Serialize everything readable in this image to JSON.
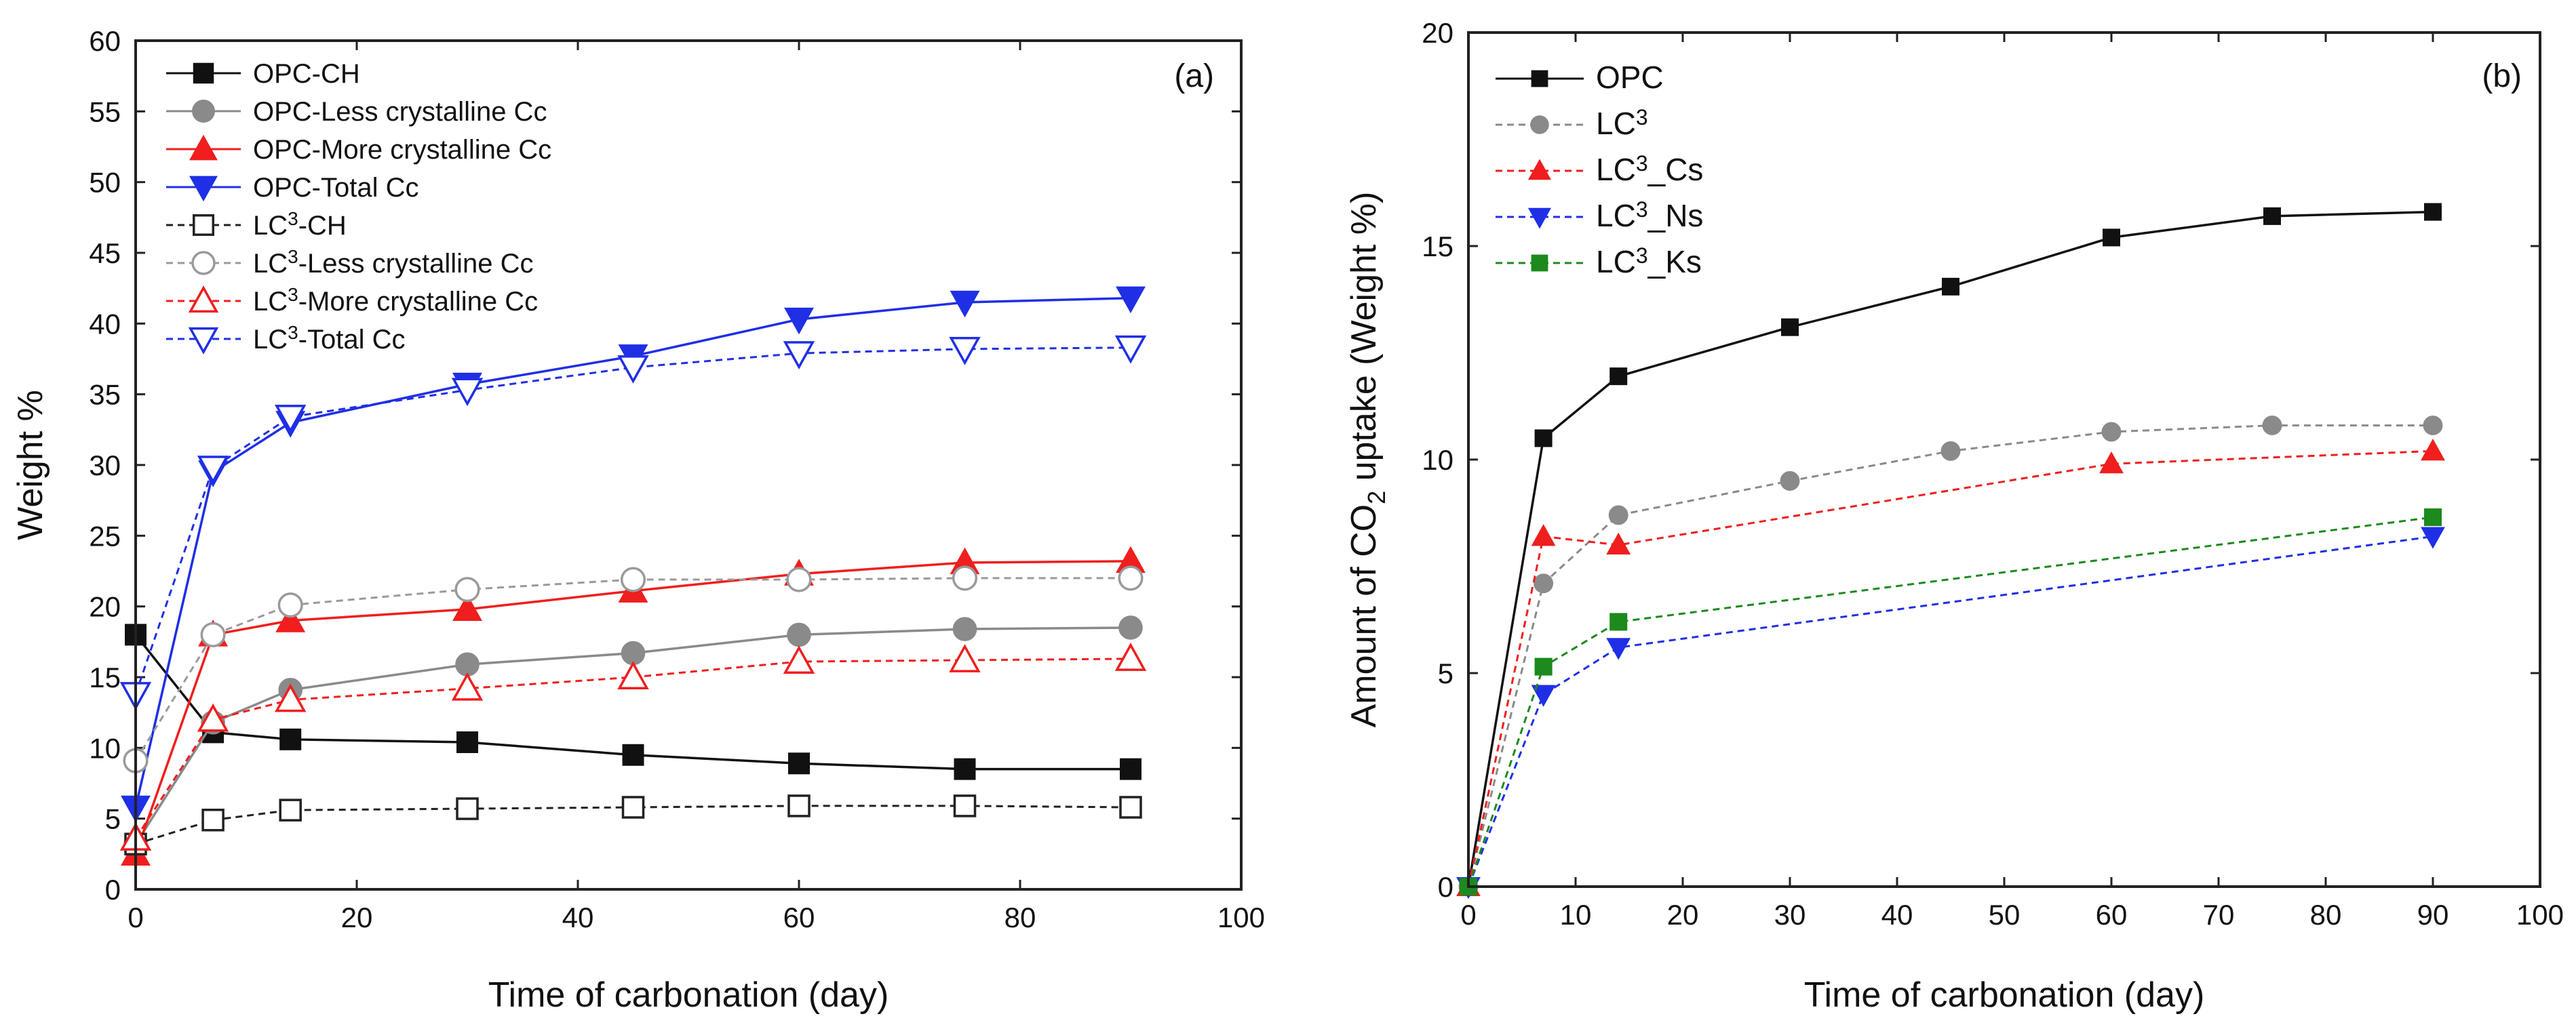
{
  "chart_data": [
    {
      "type": "line",
      "panel_label": "(a)",
      "xlabel": "Time of carbonation (day)",
      "ylabel": "Weight %",
      "xlim": [
        0,
        100
      ],
      "ylim": [
        0,
        60
      ],
      "xticks": [
        "0",
        "20",
        "40",
        "60",
        "80",
        "100"
      ],
      "yticks": [
        "0",
        "5",
        "10",
        "15",
        "20",
        "25",
        "30",
        "35",
        "40",
        "45",
        "50",
        "55",
        "60"
      ],
      "x": [
        0,
        7,
        14,
        30,
        45,
        60,
        75,
        90
      ],
      "legend_position": "top-left",
      "series": [
        {
          "name": "OPC-CH",
          "name_main": "OPC-CH",
          "name_sup": "",
          "name_rest": "",
          "color": "#111111",
          "marker": "square",
          "filled": true,
          "dashed": false,
          "values": [
            18.0,
            11.1,
            10.6,
            10.4,
            9.5,
            8.9,
            8.5,
            8.5
          ]
        },
        {
          "name": "OPC-Less crystalline Cc",
          "name_main": "OPC-Less crystalline Cc",
          "name_sup": "",
          "name_rest": "",
          "color": "#8a8a8a",
          "marker": "circle",
          "filled": true,
          "dashed": false,
          "values": [
            3.2,
            11.8,
            14.1,
            15.9,
            16.7,
            18.0,
            18.4,
            18.5
          ]
        },
        {
          "name": "OPC-More crystalline Cc",
          "name_main": "OPC-More crystalline Cc",
          "name_sup": "",
          "name_rest": "",
          "color": "#f01e1e",
          "marker": "triangle-up",
          "filled": true,
          "dashed": false,
          "values": [
            2.5,
            18.0,
            19.0,
            19.8,
            21.1,
            22.3,
            23.1,
            23.2
          ]
        },
        {
          "name": "OPC-Total Cc",
          "name_main": "OPC-Total Cc",
          "name_sup": "",
          "name_rest": "",
          "color": "#1f2fe6",
          "marker": "triangle-down",
          "filled": true,
          "dashed": false,
          "values": [
            5.8,
            29.5,
            33.0,
            35.7,
            37.7,
            40.3,
            41.5,
            41.8
          ]
        },
        {
          "name": "LC3-CH",
          "name_main": "LC",
          "name_sup": "3",
          "name_rest": "-CH",
          "color": "#222222",
          "marker": "square",
          "filled": false,
          "dashed": true,
          "values": [
            3.2,
            4.9,
            5.6,
            5.7,
            5.8,
            5.9,
            5.9,
            5.8
          ]
        },
        {
          "name": "LC3-Less crystalline Cc",
          "name_main": "LC",
          "name_sup": "3",
          "name_rest": "-Less crystalline Cc",
          "color": "#9a9a9a",
          "marker": "circle",
          "filled": false,
          "dashed": true,
          "values": [
            9.1,
            18.0,
            20.1,
            21.2,
            21.9,
            21.9,
            22.0,
            22.0
          ]
        },
        {
          "name": "LC3-More crystalline Cc",
          "name_main": "LC",
          "name_sup": "3",
          "name_rest": "-More crystalline Cc",
          "color": "#f01e1e",
          "marker": "triangle-up",
          "filled": false,
          "dashed": true,
          "values": [
            3.6,
            12.0,
            13.4,
            14.2,
            15.0,
            16.1,
            16.2,
            16.3
          ]
        },
        {
          "name": "LC3-Total Cc",
          "name_main": "LC",
          "name_sup": "3",
          "name_rest": "-Total Cc",
          "color": "#1f2fe6",
          "marker": "triangle-down",
          "filled": false,
          "dashed": true,
          "values": [
            13.8,
            29.8,
            33.4,
            35.3,
            36.9,
            37.9,
            38.2,
            38.3
          ]
        }
      ]
    },
    {
      "type": "line",
      "panel_label": "(b)",
      "xlabel": "Time of carbonation (day)",
      "ylabel_main": "Amount of CO",
      "ylabel_sub": "2",
      "ylabel_rest": " uptake (Weight %)",
      "xlim": [
        0,
        100
      ],
      "ylim": [
        0,
        20
      ],
      "xticks": [
        "0",
        "10",
        "20",
        "30",
        "40",
        "50",
        "60",
        "70",
        "80",
        "90",
        "100"
      ],
      "yticks": [
        "0",
        "5",
        "10",
        "15",
        "20"
      ],
      "legend_position": "top-left",
      "series": [
        {
          "name": "OPC",
          "name_main": "OPC",
          "name_sup": "",
          "name_rest": "",
          "color": "#111111",
          "marker": "square",
          "filled": true,
          "dashed": false,
          "x": [
            0,
            7,
            14,
            30,
            45,
            60,
            75,
            90
          ],
          "values": [
            0,
            10.5,
            11.95,
            13.1,
            14.05,
            15.2,
            15.7,
            15.8
          ]
        },
        {
          "name": "LC3",
          "name_main": "LC",
          "name_sup": "3",
          "name_rest": "",
          "color": "#8a8a8a",
          "marker": "circle",
          "filled": true,
          "dashed": true,
          "x": [
            0,
            7,
            14,
            30,
            45,
            60,
            75,
            90
          ],
          "values": [
            0,
            7.1,
            8.7,
            9.5,
            10.2,
            10.65,
            10.8,
            10.8
          ]
        },
        {
          "name": "LC3_Cs",
          "name_main": "LC",
          "name_sup": "3",
          "name_rest": "_Cs",
          "color": "#f01e1e",
          "marker": "triangle-up",
          "filled": true,
          "dashed": true,
          "x": [
            0,
            7,
            14,
            60,
            90
          ],
          "values": [
            0,
            8.2,
            8.0,
            9.9,
            10.2
          ]
        },
        {
          "name": "LC3_Ns",
          "name_main": "LC",
          "name_sup": "3",
          "name_rest": "_Ns",
          "color": "#1f2fe6",
          "marker": "triangle-down",
          "filled": true,
          "dashed": true,
          "x": [
            0,
            7,
            14,
            90
          ],
          "values": [
            0,
            4.5,
            5.6,
            8.2
          ]
        },
        {
          "name": "LC3_Ks",
          "name_main": "LC",
          "name_sup": "3",
          "name_rest": "_Ks",
          "color": "#1c8a1c",
          "marker": "square",
          "filled": true,
          "dashed": true,
          "x": [
            0,
            7,
            14,
            90
          ],
          "values": [
            0,
            5.15,
            6.2,
            8.65
          ]
        }
      ]
    }
  ]
}
